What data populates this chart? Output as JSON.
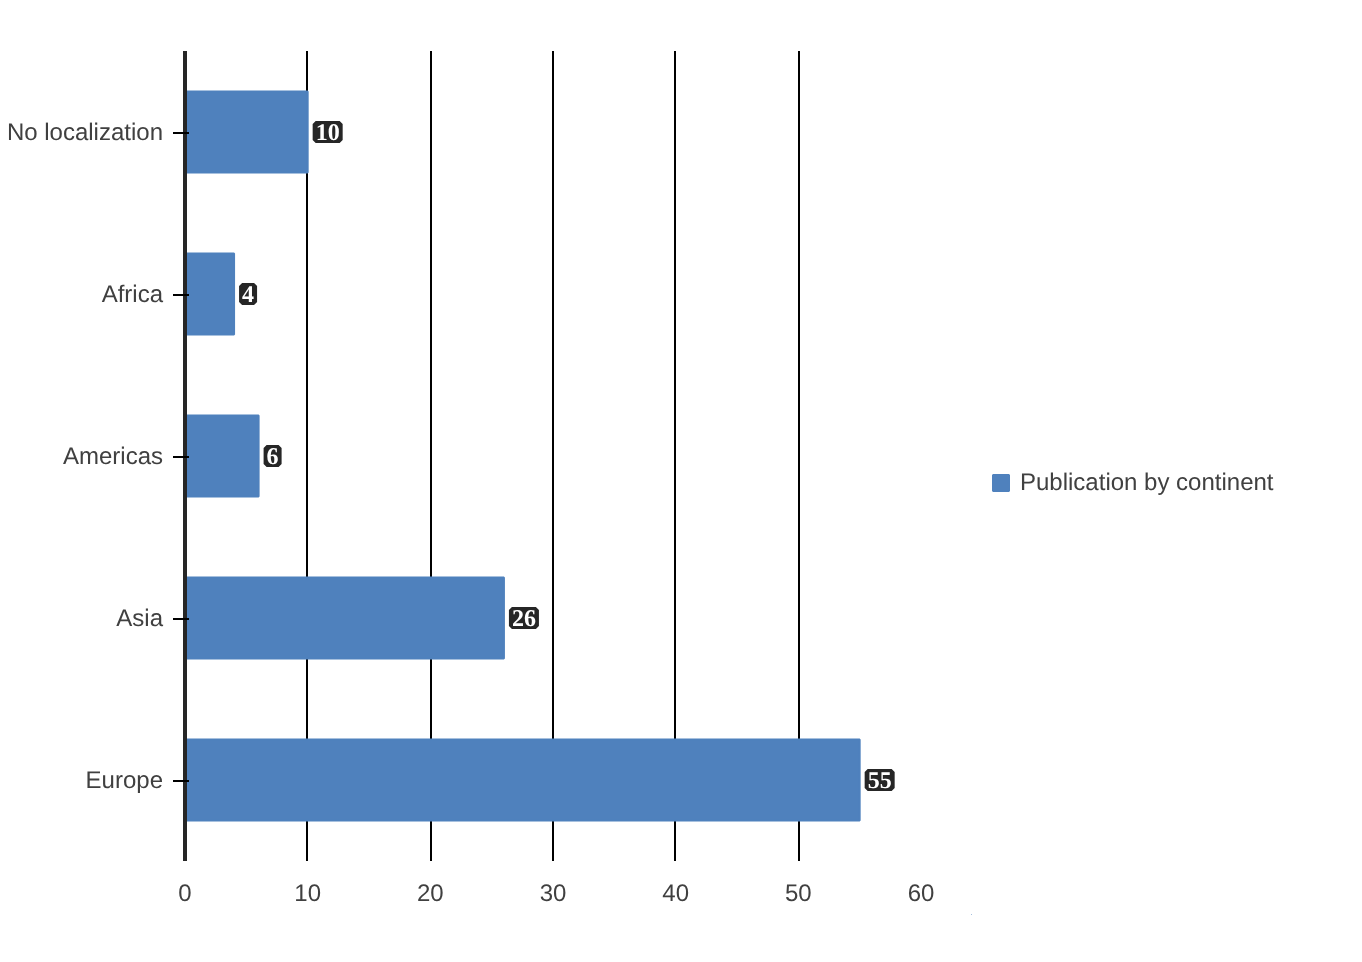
{
  "chart_data": {
    "type": "bar",
    "orientation": "horizontal",
    "categories": [
      "No localization",
      "Africa",
      "Americas",
      "Asia",
      "Europe"
    ],
    "series": [
      {
        "name": "Publication by continent",
        "color": "#4f81bd",
        "values": [
          10,
          4,
          6,
          26,
          55
        ]
      }
    ],
    "xlim": [
      0,
      60
    ],
    "xticks": [
      0,
      10,
      20,
      30,
      40,
      50,
      60
    ],
    "grid": "x",
    "legend": "right",
    "data_labels": true
  }
}
